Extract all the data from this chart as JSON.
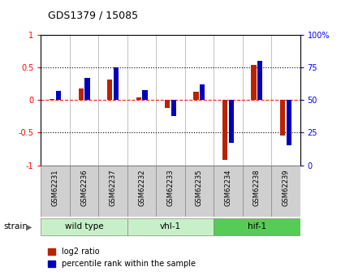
{
  "title": "GDS1379 / 15085",
  "samples": [
    "GSM62231",
    "GSM62236",
    "GSM62237",
    "GSM62232",
    "GSM62233",
    "GSM62235",
    "GSM62234",
    "GSM62238",
    "GSM62239"
  ],
  "log2_ratio": [
    0.02,
    0.18,
    0.32,
    0.04,
    -0.12,
    0.13,
    -0.92,
    0.54,
    -0.55
  ],
  "percentile_rank": [
    57,
    67,
    75,
    58,
    38,
    62,
    17,
    80,
    15
  ],
  "groups": [
    {
      "label": "wild type",
      "indices": [
        0,
        1,
        2
      ],
      "color": "#c8f0c8"
    },
    {
      "label": "vhl-1",
      "indices": [
        3,
        4,
        5
      ],
      "color": "#c8f0c8"
    },
    {
      "label": "hif-1",
      "indices": [
        6,
        7,
        8
      ],
      "color": "#55cc55"
    }
  ],
  "bar_color_red": "#bb2200",
  "bar_color_blue": "#0000bb",
  "ylim_left": [
    -1,
    1
  ],
  "ylim_right": [
    0,
    100
  ],
  "yticks_left": [
    -1,
    -0.5,
    0,
    0.5,
    1
  ],
  "yticks_right": [
    0,
    25,
    50,
    75,
    100
  ],
  "ytick_labels_left": [
    "-1",
    "-0.5",
    "0",
    "0.5",
    "1"
  ],
  "ytick_labels_right": [
    "0",
    "25",
    "50",
    "75",
    "100%"
  ],
  "hline_red": 0,
  "hlines_dotted": [
    -0.5,
    0.5
  ],
  "sample_box_color": "#d0d0d0",
  "sample_box_edge": "#888888",
  "legend_red": "log2 ratio",
  "legend_blue": "percentile rank within the sample"
}
